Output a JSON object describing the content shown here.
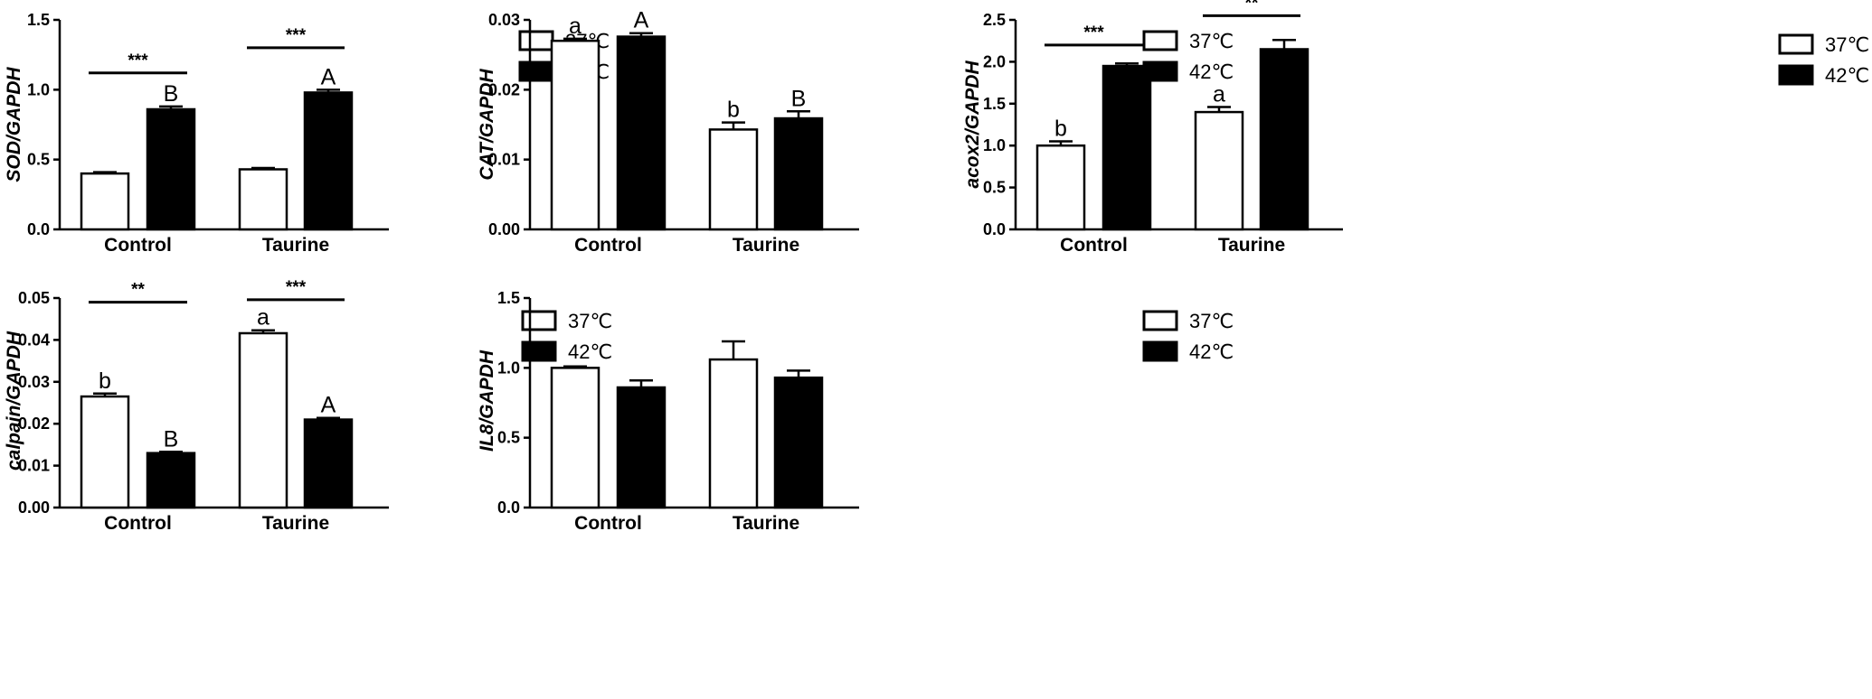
{
  "legend": {
    "series": [
      "37℃",
      "42℃"
    ]
  },
  "colors": {
    "s37": "#ffffff",
    "s42": "#000000",
    "stroke": "#000000"
  },
  "chart_data": [
    {
      "id": "sod",
      "type": "bar",
      "ylabel": "SOD/GAPDH",
      "categories": [
        "Control",
        "Taurine"
      ],
      "ylim": [
        0,
        1.5
      ],
      "yticks": [
        "0.0",
        "0.5",
        "1.0",
        "1.5"
      ],
      "series": [
        {
          "name": "37℃",
          "values": [
            0.4,
            0.43
          ],
          "errors": [
            0.01,
            0.01
          ],
          "labels": [
            "",
            ""
          ]
        },
        {
          "name": "42℃",
          "values": [
            0.86,
            0.98
          ],
          "errors": [
            0.02,
            0.02
          ],
          "labels": [
            "B",
            "A"
          ]
        }
      ],
      "significance": [
        "***",
        "***"
      ],
      "sig_levels": [
        1.12,
        1.3
      ]
    },
    {
      "id": "cat",
      "type": "bar",
      "ylabel": "CAT/GAPDH",
      "categories": [
        "Control",
        "Taurine"
      ],
      "ylim": [
        0,
        0.03
      ],
      "yticks": [
        "0.00",
        "0.01",
        "0.02",
        "0.03"
      ],
      "series": [
        {
          "name": "37℃",
          "values": [
            0.027,
            0.0143
          ],
          "errors": [
            0.0003,
            0.001
          ],
          "labels": [
            "a",
            "b"
          ]
        },
        {
          "name": "42℃",
          "values": [
            0.0276,
            0.0159
          ],
          "errors": [
            0.0005,
            0.001
          ],
          "labels": [
            "A",
            "B"
          ]
        }
      ],
      "significance": [
        "",
        ""
      ],
      "sig_levels": [
        null,
        null
      ]
    },
    {
      "id": "acox2",
      "type": "bar",
      "ylabel": "acox2/GAPDH",
      "categories": [
        "Control",
        "Taurine"
      ],
      "ylim": [
        0,
        2.5
      ],
      "yticks": [
        "0.0",
        "0.5",
        "1.0",
        "1.5",
        "2.0",
        "2.5"
      ],
      "series": [
        {
          "name": "37℃",
          "values": [
            1.0,
            1.4
          ],
          "errors": [
            0.05,
            0.06
          ],
          "labels": [
            "b",
            "a"
          ]
        },
        {
          "name": "42℃",
          "values": [
            1.95,
            2.15
          ],
          "errors": [
            0.03,
            0.11
          ],
          "labels": [
            "",
            ""
          ]
        }
      ],
      "significance": [
        "***",
        "**"
      ],
      "sig_levels": [
        2.2,
        2.55
      ]
    },
    {
      "id": "calpain",
      "type": "bar",
      "ylabel": "calpain/GAPDH",
      "categories": [
        "Control",
        "Taurine"
      ],
      "ylim": [
        0,
        0.05
      ],
      "yticks": [
        "0.00",
        "0.01",
        "0.02",
        "0.03",
        "0.04",
        "0.05"
      ],
      "series": [
        {
          "name": "37℃",
          "values": [
            0.0265,
            0.0416
          ],
          "errors": [
            0.0007,
            0.0007
          ],
          "labels": [
            "b",
            "a"
          ]
        },
        {
          "name": "42℃",
          "values": [
            0.013,
            0.021
          ],
          "errors": [
            0.0003,
            0.0004
          ],
          "labels": [
            "B",
            "A"
          ]
        }
      ],
      "significance": [
        "**",
        "***"
      ],
      "sig_levels": [
        0.049,
        0.0496
      ]
    },
    {
      "id": "il8",
      "type": "bar",
      "ylabel": "IL8/GAPDH",
      "categories": [
        "Control",
        "Taurine"
      ],
      "ylim": [
        0,
        1.5
      ],
      "yticks": [
        "0.0",
        "0.5",
        "1.0",
        "1.5"
      ],
      "series": [
        {
          "name": "37℃",
          "values": [
            1.0,
            1.06
          ],
          "errors": [
            0.01,
            0.13
          ],
          "labels": [
            "",
            ""
          ]
        },
        {
          "name": "42℃",
          "values": [
            0.86,
            0.93
          ],
          "errors": [
            0.05,
            0.05
          ],
          "labels": [
            "",
            ""
          ]
        }
      ],
      "significance": [
        "",
        ""
      ],
      "sig_levels": [
        null,
        null
      ]
    }
  ]
}
